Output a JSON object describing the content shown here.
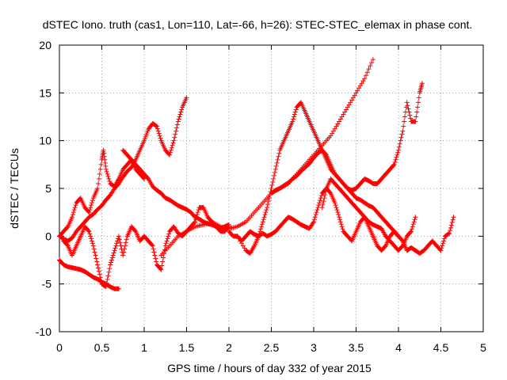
{
  "chart_data": {
    "type": "scatter",
    "title": "dSTEC Iono. truth (cas1, Lon=110, Lat=-66, h=26): STEC-STEC_elemax in phase cont.",
    "xlabel": "GPS time / hours of day 332 of year 2015",
    "ylabel": "dSTEC  / TECUs",
    "xlim": [
      0,
      5
    ],
    "ylim": [
      -10,
      20
    ],
    "xticks": [
      0,
      0.5,
      1,
      1.5,
      2,
      2.5,
      3,
      3.5,
      4,
      4.5,
      5
    ],
    "yticks": [
      -10,
      -5,
      0,
      5,
      10,
      15,
      20
    ],
    "xtick_labels": [
      "0",
      "0.5",
      "1",
      "1.5",
      "2",
      "2.5",
      "3",
      "3.5",
      "4",
      "4.5",
      "5"
    ],
    "ytick_labels": [
      "-10",
      "-5",
      "0",
      "5",
      "10",
      "15",
      "20"
    ],
    "grid": true,
    "marker": "plus",
    "series_color": "#ff0000",
    "series": [
      {
        "x": [
          0,
          0.05,
          0.1,
          0.15,
          0.2,
          0.25,
          0.3,
          0.35,
          0.4,
          0.45,
          0.5,
          0.52,
          0.55,
          0.6,
          0.65,
          0.7,
          0.75,
          0.8,
          0.85,
          0.9,
          0.95,
          1.0
        ],
        "y": [
          0,
          0.5,
          1,
          2,
          3.5,
          4,
          3,
          2.5,
          4,
          5,
          8,
          9,
          7,
          5.5,
          5.2,
          6,
          7,
          7.5,
          8,
          7,
          6.5,
          6
        ]
      },
      {
        "x": [
          0,
          0.05,
          0.1,
          0.15,
          0.2,
          0.25,
          0.3,
          0.35,
          0.4,
          0.45,
          0.5,
          0.55,
          0.6,
          0.65,
          0.7,
          0.75,
          0.8,
          0.85,
          0.9,
          0.95,
          1.0,
          1.05,
          1.1,
          1.15,
          1.2,
          1.25,
          1.3,
          1.35,
          1.4,
          1.45,
          1.5
        ],
        "y": [
          0,
          -0.3,
          -0.5,
          -0.2,
          0.5,
          1,
          1.5,
          2,
          2.3,
          2.8,
          3.2,
          3.8,
          4.3,
          5,
          5.5,
          6.2,
          6.8,
          7.2,
          8,
          9,
          10,
          11.2,
          11.8,
          11.5,
          10,
          9,
          8.5,
          10,
          12,
          13.5,
          14.5
        ]
      },
      {
        "x": [
          0,
          0.05,
          0.1,
          0.15,
          0.2,
          0.25,
          0.3,
          0.35,
          0.4,
          0.45,
          0.5,
          0.55,
          0.6,
          0.65,
          0.7
        ],
        "y": [
          -2.5,
          -3,
          -3.2,
          -3.3,
          -3.4,
          -3.5,
          -3.7,
          -4,
          -4.3,
          -4.5,
          -4.8,
          -5,
          -5.3,
          -5.5,
          -5.5
        ]
      },
      {
        "x": [
          0.05,
          0.1,
          0.15,
          0.2,
          0.25,
          0.3,
          0.35,
          0.4,
          0.45,
          0.5,
          0.55,
          0.6,
          0.65,
          0.7,
          0.75,
          0.8,
          0.85,
          0.9,
          0.95,
          1.0
        ],
        "y": [
          -0.5,
          -1,
          -2,
          -1,
          0,
          1,
          0.5,
          -1,
          -3,
          -5,
          -5.3,
          -3,
          -1.5,
          0,
          -2,
          0,
          1,
          0.5,
          -0.5,
          0
        ]
      },
      {
        "x": [
          0.75,
          0.8,
          0.85,
          0.9,
          0.95,
          1.0,
          1.05,
          1.1,
          1.15,
          1.2,
          1.25,
          1.3,
          1.35,
          1.4,
          1.45,
          1.5,
          1.55,
          1.6,
          1.65,
          1.7,
          1.75,
          1.8,
          1.85,
          1.9,
          1.95,
          2.0
        ],
        "y": [
          9,
          8.5,
          8,
          7.5,
          7,
          6.5,
          6,
          5.2,
          4.8,
          4.5,
          4,
          3.8,
          3.5,
          3.2,
          3,
          2.8,
          2.5,
          2,
          1.8,
          1.5,
          1.3,
          1.2,
          1,
          0.8,
          1,
          1.2
        ]
      },
      {
        "x": [
          1.0,
          1.05,
          1.1,
          1.15,
          1.2,
          1.25,
          1.3,
          1.35,
          1.4,
          1.45,
          1.5,
          1.55,
          1.6,
          1.65,
          1.7,
          1.75,
          1.8,
          1.85,
          1.9,
          1.95,
          2.0
        ],
        "y": [
          0,
          -0.5,
          -1,
          -3,
          -3.5,
          -1,
          0.5,
          1,
          0.3,
          0,
          0.5,
          1,
          1.5,
          3,
          3,
          2,
          1.5,
          1,
          0.5,
          0.5,
          1
        ]
      },
      {
        "x": [
          1.2,
          1.3,
          1.4,
          1.5,
          1.6,
          1.7,
          1.8,
          1.9,
          2.0,
          2.1,
          2.2,
          2.3,
          2.4,
          2.5,
          2.6,
          2.7,
          2.8,
          2.9,
          3.0,
          3.1,
          3.2,
          3.3,
          3.4,
          3.5,
          3.6,
          3.7
        ],
        "y": [
          -2,
          -1,
          0,
          0.5,
          1,
          1.2,
          1.5,
          1,
          0.8,
          1,
          1.5,
          2.5,
          3.5,
          4.5,
          5,
          5.5,
          6.5,
          7.5,
          8.5,
          9.5,
          10.5,
          12,
          13.5,
          15,
          16.5,
          18.5
        ]
      },
      {
        "x": [
          2.1,
          2.2,
          2.25,
          2.3,
          2.35,
          2.4,
          2.45,
          2.5,
          2.55,
          2.6,
          2.65,
          2.7,
          2.75,
          2.8,
          2.85,
          2.9,
          2.95,
          3.0,
          3.05,
          3.1,
          3.15,
          3.2,
          3.25,
          3.3,
          3.35,
          3.4,
          3.45,
          3.5,
          3.55,
          3.6,
          3.65,
          3.7,
          3.75,
          3.8,
          3.85,
          3.9,
          3.95,
          4.0
        ],
        "y": [
          0,
          -1.5,
          -1.8,
          -1,
          0,
          1.5,
          3,
          5,
          7,
          9,
          10,
          11,
          12,
          13.5,
          14,
          13,
          12,
          11,
          10,
          9,
          8,
          7,
          6.5,
          6,
          5.5,
          5,
          4.5,
          4,
          3.8,
          3.5,
          3.2,
          3,
          2.5,
          2,
          1.5,
          1,
          0.5,
          0
        ]
      },
      {
        "x": [
          2.5,
          2.55,
          2.6,
          2.65,
          2.7,
          2.75,
          2.8,
          2.85,
          2.9,
          2.95,
          3.0,
          3.05,
          3.1,
          3.15,
          3.2,
          3.25,
          3.3,
          3.35,
          3.4,
          3.45,
          3.5,
          3.55,
          3.6,
          3.65,
          3.7,
          3.75,
          3.8,
          3.85,
          3.9,
          3.95,
          4.0,
          4.05,
          4.1,
          4.15,
          4.2,
          4.25,
          4.28
        ],
        "y": [
          4.5,
          4.8,
          5,
          5.3,
          5.6,
          6,
          6.3,
          6.8,
          7.2,
          7.6,
          8.2,
          8.7,
          9,
          8.5,
          7.5,
          6.5,
          6,
          5.5,
          5,
          4.8,
          5,
          5.5,
          6,
          5.8,
          5.5,
          5.5,
          6,
          6.5,
          7,
          7.5,
          9,
          11,
          14,
          12,
          12,
          15,
          16
        ]
      },
      {
        "x": [
          2.0,
          2.05,
          2.1,
          2.15,
          2.2,
          2.25,
          2.3,
          2.35,
          2.4,
          2.45,
          2.5,
          2.55,
          2.6,
          2.65,
          2.7,
          2.75,
          2.8,
          2.85,
          2.9,
          2.95,
          3.0,
          3.05,
          3.1,
          3.15,
          3.2,
          3.25,
          3.3,
          3.35,
          3.4,
          3.45,
          3.5,
          3.55,
          3.6,
          3.65,
          3.7,
          3.75,
          3.8,
          3.85,
          3.9,
          3.95,
          4.0,
          4.05,
          4.1,
          4.15,
          4.2,
          4.25,
          4.3,
          4.35,
          4.4,
          4.45,
          4.5,
          4.55,
          4.6,
          4.65
        ],
        "y": [
          0.5,
          0,
          0,
          -0.5,
          0,
          0.5,
          0.2,
          0,
          0.3,
          0,
          0.2,
          0.5,
          1,
          1.5,
          2,
          1.8,
          1.5,
          1.2,
          1,
          0.8,
          1.5,
          3,
          4.5,
          5,
          4.5,
          3.5,
          2,
          0.5,
          0,
          -0.5,
          0.5,
          1.5,
          2,
          1,
          0,
          -1,
          -1.5,
          -1,
          0,
          0.5,
          0,
          -0.5,
          -1.5,
          -1.2,
          -1.5,
          -1.8,
          -1.5,
          -1,
          -0.5,
          -1,
          -1.5,
          0,
          0.3,
          2
        ]
      },
      {
        "x": [
          3.1,
          3.15,
          3.2,
          3.25,
          3.3,
          3.35,
          3.4,
          3.45,
          3.5,
          3.55,
          3.6,
          3.65,
          3.7,
          3.75,
          3.8,
          3.85,
          3.9,
          3.95,
          4.0,
          4.05,
          4.1,
          4.15,
          4.2
        ],
        "y": [
          3,
          5,
          6,
          5.5,
          5,
          4.5,
          4,
          3.5,
          3,
          2.5,
          2,
          1.5,
          1.2,
          1,
          0.8,
          0,
          -0.5,
          -1,
          -1.5,
          -1,
          0,
          0.5,
          2
        ]
      }
    ]
  }
}
